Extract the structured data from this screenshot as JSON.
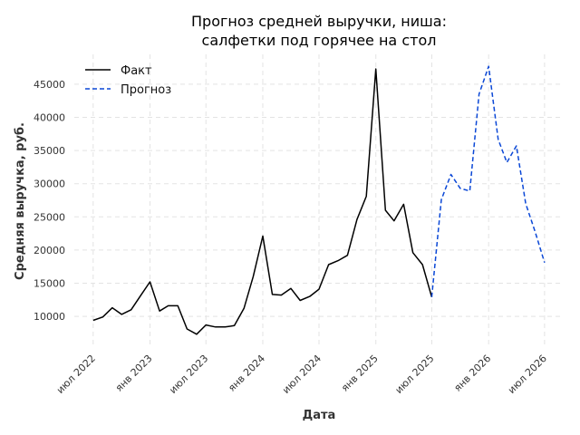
{
  "chart_data": {
    "type": "line",
    "title_line1": "Прогноз средней выручки, ниша:",
    "title_line2": "салфетки под горячее на стол",
    "xlabel": "Дата",
    "ylabel": "Средняя выручка, руб.",
    "x_ticks": [
      {
        "date": "2022-07-01",
        "label": "июл 2022"
      },
      {
        "date": "2023-01-01",
        "label": "янв 2023"
      },
      {
        "date": "2023-07-01",
        "label": "июл 2023"
      },
      {
        "date": "2024-01-01",
        "label": "янв 2024"
      },
      {
        "date": "2024-07-01",
        "label": "июл 2024"
      },
      {
        "date": "2025-01-01",
        "label": "янв 2025"
      },
      {
        "date": "2025-07-01",
        "label": "июл 2025"
      },
      {
        "date": "2026-01-01",
        "label": "янв 2026"
      },
      {
        "date": "2026-07-01",
        "label": "июл 2026"
      }
    ],
    "y_ticks": [
      10000,
      15000,
      20000,
      25000,
      30000,
      35000,
      40000,
      45000
    ],
    "xlim": [
      "2022-05-01",
      "2026-09-01"
    ],
    "ylim": [
      5500,
      49500
    ],
    "grid": true,
    "legend_position": "top-left",
    "series": [
      {
        "name": "Факт",
        "color": "#000000",
        "style": "solid",
        "x": [
          "2022-07-01",
          "2022-08-01",
          "2022-09-01",
          "2022-10-01",
          "2022-11-01",
          "2022-12-01",
          "2023-01-01",
          "2023-02-01",
          "2023-03-01",
          "2023-04-01",
          "2023-05-01",
          "2023-06-01",
          "2023-07-01",
          "2023-08-01",
          "2023-09-01",
          "2023-10-01",
          "2023-11-01",
          "2023-12-01",
          "2024-01-01",
          "2024-02-01",
          "2024-03-01",
          "2024-04-01",
          "2024-05-01",
          "2024-06-01",
          "2024-07-01",
          "2024-08-01",
          "2024-09-01",
          "2024-10-01",
          "2024-11-01",
          "2024-12-01",
          "2025-01-01",
          "2025-02-01",
          "2025-03-01",
          "2025-04-01",
          "2025-05-01",
          "2025-06-01",
          "2025-07-01"
        ],
        "values": [
          9400,
          9900,
          11300,
          10300,
          11000,
          13100,
          15200,
          10800,
          11600,
          11600,
          8100,
          7300,
          8700,
          8400,
          8400,
          8600,
          11200,
          16000,
          22100,
          13300,
          13200,
          14200,
          12400,
          13000,
          14100,
          17800,
          18400,
          19200,
          24600,
          28100,
          47300,
          26000,
          24400,
          26900,
          19600,
          17800,
          12900
        ]
      },
      {
        "name": "Прогноз",
        "color": "#0a47d6",
        "style": "dashed",
        "x": [
          "2025-07-01",
          "2025-08-01",
          "2025-09-01",
          "2025-10-01",
          "2025-11-01",
          "2025-12-01",
          "2026-01-01",
          "2026-02-01",
          "2026-03-01",
          "2026-04-01",
          "2026-05-01",
          "2026-06-01",
          "2026-07-01"
        ],
        "values": [
          12900,
          27600,
          31400,
          29300,
          28900,
          43500,
          47700,
          36700,
          33200,
          35700,
          27000,
          22700,
          18100
        ]
      }
    ]
  }
}
